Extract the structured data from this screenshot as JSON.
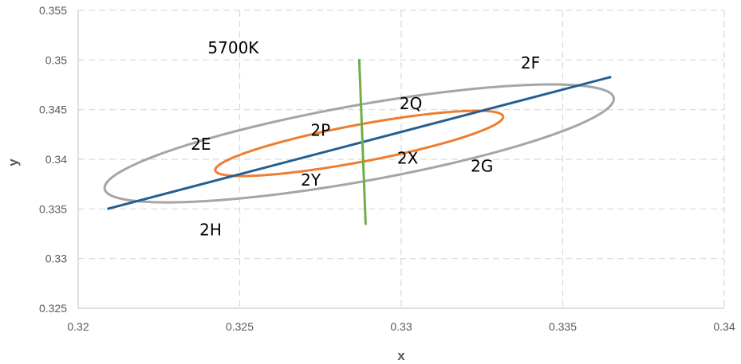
{
  "chart_data": {
    "type": "scatter",
    "title": "",
    "xlabel": "x",
    "ylabel": "y",
    "xlim": [
      0.32,
      0.34
    ],
    "ylim": [
      0.325,
      0.355
    ],
    "xticks": [
      "0.32",
      "0.325",
      "0.33",
      "0.335",
      "0.34"
    ],
    "yticks": [
      "0.325",
      "0.33",
      "0.335",
      "0.34",
      "0.345",
      "0.35",
      "0.355"
    ],
    "grid": true,
    "legend": "none",
    "ellipses": [
      {
        "name": "outer",
        "color": "#A5A5A5",
        "center": [
          0.3287,
          0.3416
        ],
        "semi_major": 0.0093,
        "semi_minor": 0.0033,
        "tilt_deg": 34.6
      },
      {
        "name": "inner",
        "color": "#ED7D31",
        "center": [
          0.3287,
          0.3416
        ],
        "semi_major": 0.0053,
        "semi_minor": 0.0016,
        "tilt_deg": 34.6
      }
    ],
    "series": [
      {
        "color": "#255E91",
        "points": [
          [
            0.3209,
            0.335
          ],
          [
            0.3365,
            0.3483
          ]
        ]
      },
      {
        "color": "#70AD47",
        "points": [
          [
            0.3287,
            0.3501
          ],
          [
            0.3289,
            0.3334
          ]
        ]
      }
    ],
    "annotations": [
      {
        "text": "5700K",
        "x": 0.3248,
        "y": 0.3511
      },
      {
        "text": "2F",
        "x": 0.334,
        "y": 0.3496
      },
      {
        "text": "2Q",
        "x": 0.3303,
        "y": 0.3455
      },
      {
        "text": "2P",
        "x": 0.3275,
        "y": 0.3428
      },
      {
        "text": "2E",
        "x": 0.3238,
        "y": 0.3414
      },
      {
        "text": "2X",
        "x": 0.3302,
        "y": 0.34
      },
      {
        "text": "2G",
        "x": 0.3325,
        "y": 0.3392
      },
      {
        "text": "2Y",
        "x": 0.3272,
        "y": 0.3378
      },
      {
        "text": "2H",
        "x": 0.3241,
        "y": 0.3328
      }
    ]
  }
}
